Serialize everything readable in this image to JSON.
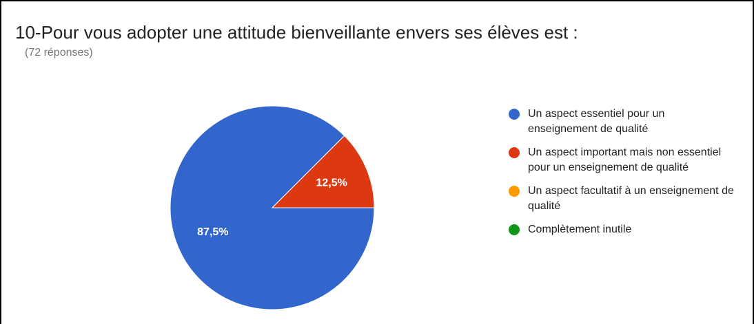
{
  "chart_data": {
    "type": "pie",
    "title": "10-Pour vous adopter une attitude bienveillante envers ses élèves est :",
    "subtitle": "(72 réponses)",
    "categories": [
      "Un aspect essentiel pour un enseignement de qualité",
      "Un aspect important mais non essentiel pour un enseignement de qualité",
      "Un aspect facultatif à un enseignement de qualité",
      "Complètement inutile"
    ],
    "values": [
      87.5,
      12.5,
      0,
      0
    ],
    "value_labels": [
      "87,5%",
      "12,5%",
      null,
      null
    ],
    "colors": [
      "#3366cc",
      "#dc3912",
      "#ff9900",
      "#109618"
    ]
  }
}
